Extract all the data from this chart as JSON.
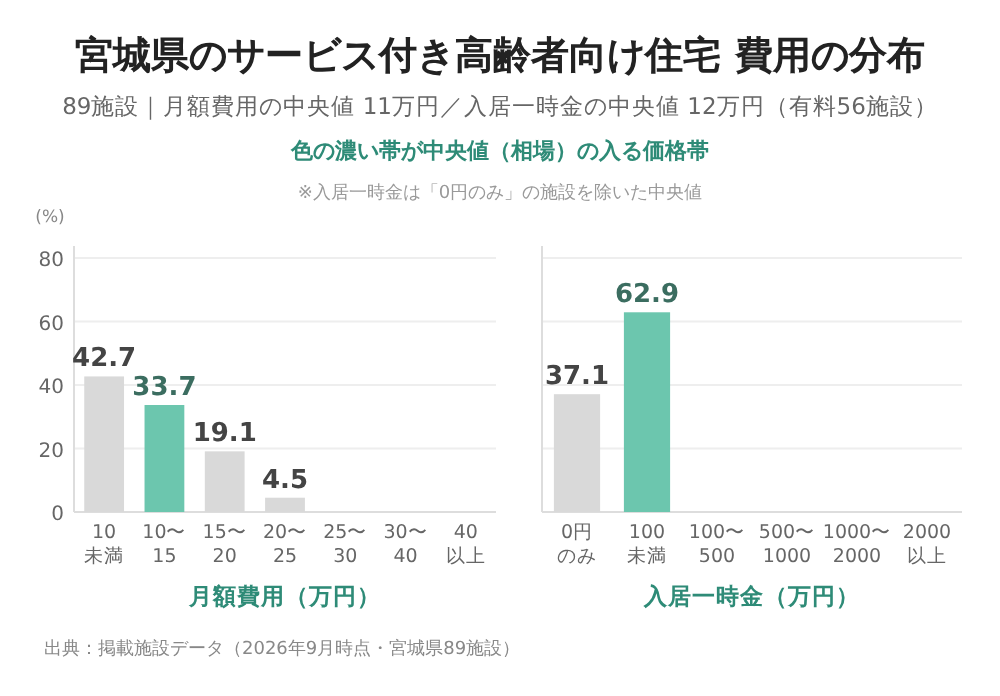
{
  "chart_data": [
    {
      "type": "bar",
      "title": "宮城県のサービス付き高齢者向け住宅 費用の分布",
      "subtitle": "89施設｜月額費用の中央値 11万円／入居一時金の中央値 12万円（有料56施設）",
      "annotations": [
        "色の濃い帯が中央値（相場）の入る価格帯",
        "※入居一時金は「0円のみ」の施設を除いた中央値",
        "出典：掲載施設データ（2026年9月時点・宮城県89施設）"
      ],
      "ylabel": "(%)",
      "xlabel": "月額費用（万円）",
      "categories": [
        "10\n未満",
        "10〜\n15",
        "15〜\n20",
        "20〜\n25",
        "25〜\n30",
        "30〜\n40",
        "40\n以上"
      ],
      "values": [
        42.7,
        33.7,
        19.1,
        4.5,
        0,
        0,
        0
      ],
      "value_labels": [
        "42.7",
        "33.7",
        "19.1",
        "4.5",
        null,
        null,
        null
      ],
      "colors": [
        "#d9d9d9",
        "#6cc6ae",
        "#d9d9d9",
        "#d9d9d9",
        "#d9d9d9",
        "#d9d9d9",
        "#d9d9d9"
      ],
      "ylim": [
        0,
        80
      ],
      "yticks": [
        0,
        20,
        40,
        60,
        80
      ],
      "grid": "y"
    },
    {
      "type": "bar",
      "xlabel": "入居一時金（万円）",
      "categories": [
        "0円のみ",
        "100\n未満",
        "100〜\n500",
        "500〜\n1000",
        "1000〜\n2000",
        "2000\n以上"
      ],
      "values": [
        37.1,
        62.9,
        0,
        0,
        0,
        0
      ],
      "value_labels": [
        "37.1",
        "62.9",
        null,
        null,
        null,
        null
      ],
      "colors": [
        "#d9d9d9",
        "#6cc6ae",
        "#d9d9d9",
        "#d9d9d9",
        "#d9d9d9",
        "#d9d9d9"
      ],
      "ylim": [
        0,
        80
      ],
      "yticks": [
        0,
        20,
        40,
        60,
        80
      ],
      "grid": "y",
      "tick_labels": "x"
    }
  ]
}
